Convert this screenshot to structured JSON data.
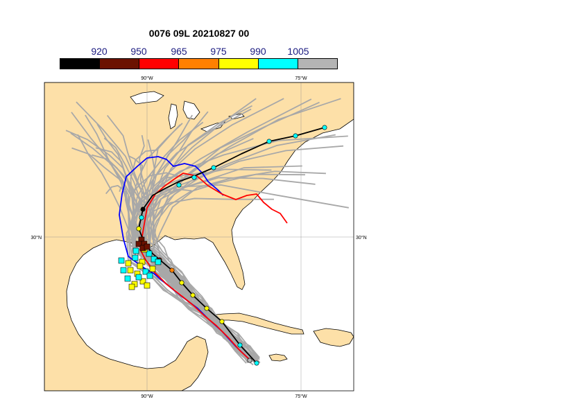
{
  "title": "0076 09L 20210827 00",
  "colorbar": {
    "labels": [
      "920",
      "950",
      "965",
      "975",
      "990",
      "1005"
    ],
    "colors": [
      "#000000",
      "#6b1200",
      "#ff0000",
      "#ff8000",
      "#ffff00",
      "#00ffff",
      "#b4b4b4"
    ]
  },
  "map": {
    "lon_labels": [
      "90°W",
      "75°W"
    ],
    "lat_labels": [
      "30°N"
    ],
    "land_color": "#fde0a8",
    "ocean_color": "#ffffff"
  },
  "tracks": {
    "ensemble_color": "#a8a8a8",
    "black_track_color": "#000000",
    "red_track_color": "#ff0000",
    "blue_track_color": "#0000ff"
  }
}
